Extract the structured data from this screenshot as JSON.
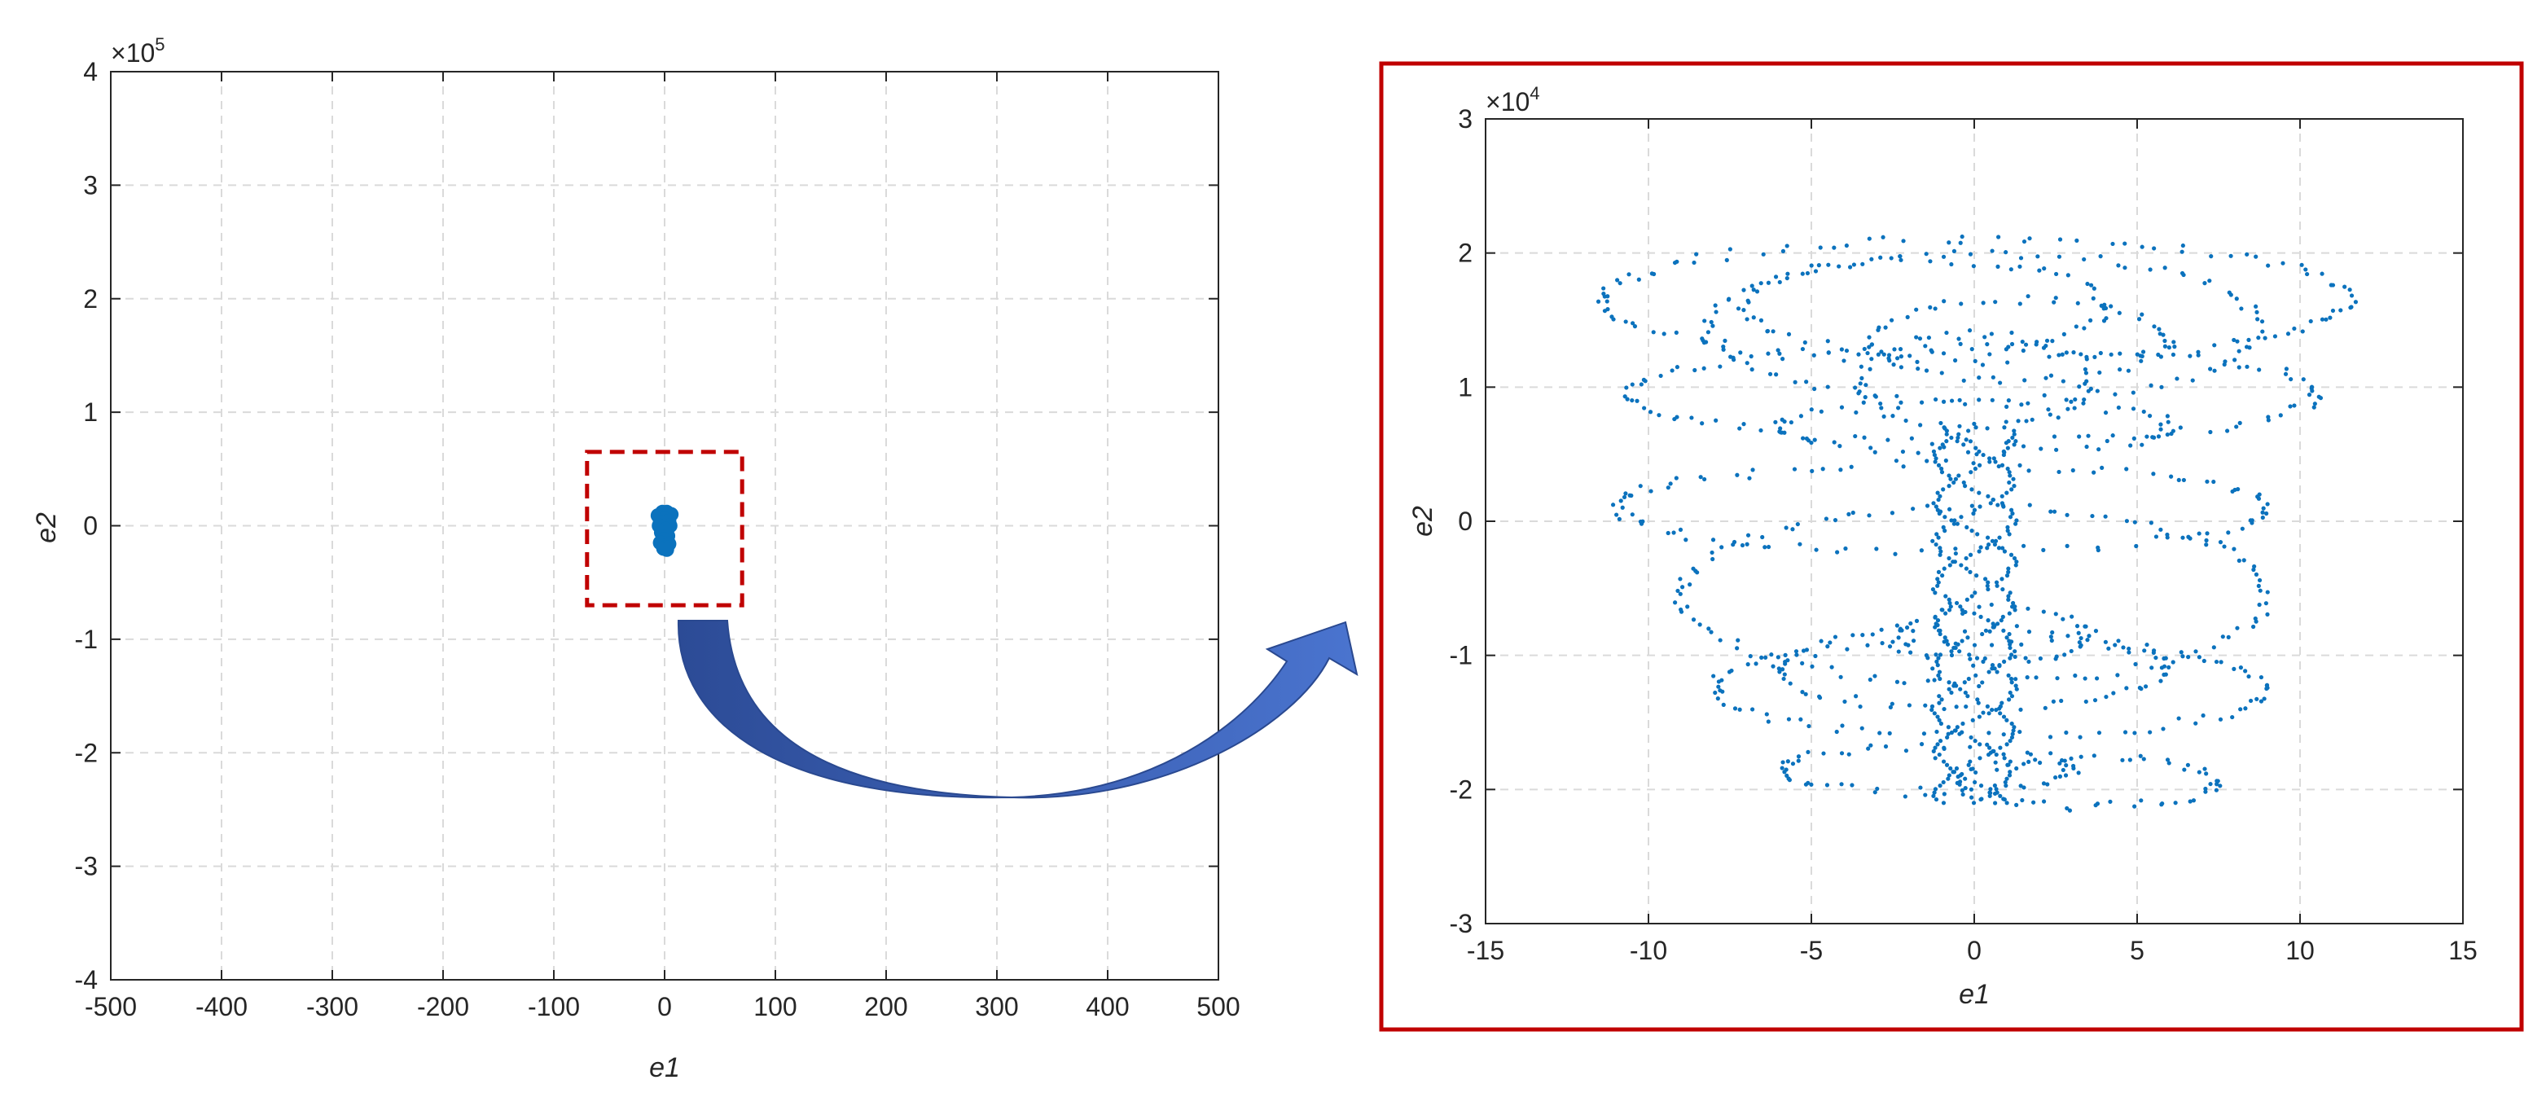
{
  "chart_data": [
    {
      "type": "scatter",
      "xlabel": "e1",
      "ylabel": "e2",
      "xlim": [
        -500,
        500
      ],
      "ylim": [
        -400000,
        400000
      ],
      "xticks": [
        -500,
        -400,
        -300,
        -200,
        -100,
        0,
        100,
        200,
        300,
        400,
        500
      ],
      "xtick_labels": [
        "-500",
        "-400",
        "-300",
        "-200",
        "-100",
        "0",
        "100",
        "200",
        "300",
        "400",
        "500"
      ],
      "yticks": [
        -400000,
        -300000,
        -200000,
        -100000,
        0,
        100000,
        200000,
        300000,
        400000
      ],
      "ytick_labels": [
        "-4",
        "-3",
        "-2",
        "-1",
        "0",
        "1",
        "2",
        "3",
        "4"
      ],
      "y_exponent_label": "×10",
      "y_exponent": "5",
      "grid": true,
      "marker_color": "#0b72bd",
      "series": [
        {
          "points": [
            [
              -2,
              12000
            ],
            [
              2,
              12000
            ],
            [
              6,
              10000
            ],
            [
              -6,
              9000
            ],
            [
              0,
              6000
            ],
            [
              4,
              4000
            ],
            [
              -4,
              3000
            ],
            [
              5,
              0
            ],
            [
              -5,
              0
            ],
            [
              1,
              -3000
            ],
            [
              -3,
              -6000
            ],
            [
              3,
              -9000
            ],
            [
              0,
              -12000
            ],
            [
              -4,
              -15000
            ],
            [
              4,
              -16000
            ],
            [
              1,
              -19000
            ],
            [
              -1,
              -20000
            ],
            [
              2,
              -21000
            ]
          ]
        }
      ],
      "highlight_region": {
        "x": [
          -70,
          70
        ],
        "y": [
          -70000,
          65000
        ],
        "color": "#c00000",
        "style": "dashed"
      }
    },
    {
      "type": "scatter",
      "xlabel": "e1",
      "ylabel": "e2",
      "xlim": [
        -15,
        15
      ],
      "ylim": [
        -30000,
        30000
      ],
      "xticks": [
        -15,
        -10,
        -5,
        0,
        5,
        10,
        15
      ],
      "xtick_labels": [
        "-15",
        "-10",
        "-5",
        "0",
        "5",
        "10",
        "15"
      ],
      "yticks": [
        -30000,
        -20000,
        -10000,
        0,
        10000,
        20000,
        30000
      ],
      "ytick_labels": [
        "-3",
        "-2",
        "-1",
        "0",
        "1",
        "2",
        "3"
      ],
      "y_exponent_label": "×10",
      "y_exponent": "4",
      "grid": true,
      "marker_color": "#0b72bd",
      "frame_color": "#c00000",
      "rings": [
        {
          "cx": 0.0,
          "cy": 16500,
          "rx": 11.5,
          "ry": 4500,
          "n": 110
        },
        {
          "cx": 0.3,
          "cy": 14500,
          "rx": 8.5,
          "ry": 5500,
          "n": 90
        },
        {
          "cx": 0.0,
          "cy": 10500,
          "rx": 3.5,
          "ry": 3500,
          "n": 55
        },
        {
          "cx": 0.0,
          "cy": 9500,
          "rx": 10.5,
          "ry": 3500,
          "n": 95
        },
        {
          "cx": 0.0,
          "cy": 7000,
          "rx": 6.0,
          "ry": 1800,
          "n": 60
        },
        {
          "cx": -1.0,
          "cy": 1000,
          "rx": 10.0,
          "ry": 3200,
          "n": 95
        },
        {
          "cx": 0.0,
          "cy": -5500,
          "rx": 9.0,
          "ry": 6500,
          "n": 110
        },
        {
          "cx": 0.5,
          "cy": -8500,
          "rx": 3.0,
          "ry": 2000,
          "n": 50
        },
        {
          "cx": 0.0,
          "cy": -11000,
          "rx": 6.0,
          "ry": 3000,
          "n": 75
        },
        {
          "cx": 0.5,
          "cy": -12500,
          "rx": 8.5,
          "ry": 3500,
          "n": 90
        },
        {
          "cx": -1.5,
          "cy": -18500,
          "rx": 4.5,
          "ry": 1700,
          "n": 60
        },
        {
          "cx": 3.5,
          "cy": -19500,
          "rx": 4.0,
          "ry": 1800,
          "n": 60
        },
        {
          "cx": -1.5,
          "cy": 16000,
          "rx": 5.5,
          "ry": 3500,
          "n": 65
        },
        {
          "cx": 1.5,
          "cy": 13500,
          "rx": 4.5,
          "ry": 3000,
          "n": 55
        }
      ],
      "helix": {
        "amp": 1.2,
        "ymin": -21000,
        "ymax": 7000,
        "n": 110,
        "strands": 3
      }
    }
  ]
}
